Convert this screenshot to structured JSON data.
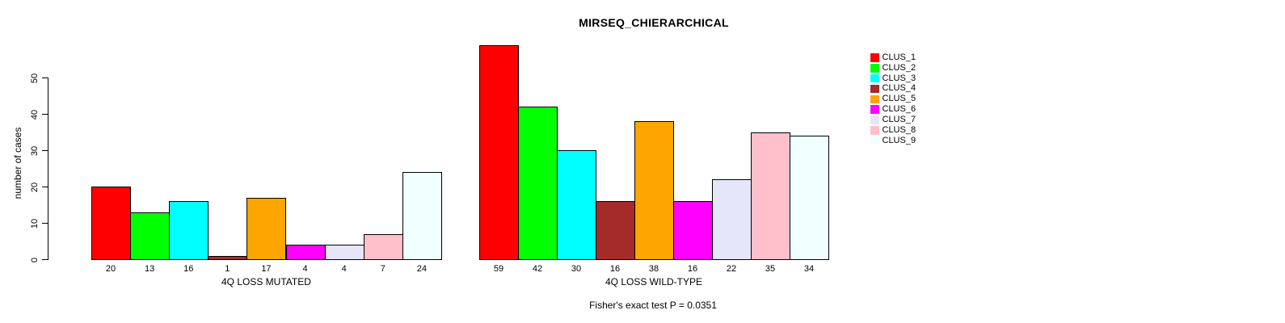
{
  "chart_data": {
    "type": "bar",
    "title": "MIRSEQ_CHIERARCHICAL",
    "ylabel": "number of cases",
    "ylim": [
      0,
      59
    ],
    "yticks": [
      0,
      10,
      20,
      30,
      40,
      50
    ],
    "grid": false,
    "legend_position": "right-top",
    "categories": [
      "CLUS_1",
      "CLUS_2",
      "CLUS_3",
      "CLUS_4",
      "CLUS_5",
      "CLUS_6",
      "CLUS_7",
      "CLUS_8",
      "CLUS_9"
    ],
    "colors": [
      "#FF0000",
      "#00FF00",
      "#00FFFF",
      "#A52A2A",
      "#FFA500",
      "#FF00FF",
      "#E6E6FA",
      "#FFC0CB",
      "#F0FFFF"
    ],
    "series": [
      {
        "name": "4Q LOSS MUTATED",
        "values": [
          20,
          13,
          16,
          1,
          17,
          4,
          4,
          7,
          24
        ]
      },
      {
        "name": "4Q LOSS WILD-TYPE",
        "values": [
          59,
          42,
          30,
          16,
          38,
          16,
          22,
          35,
          34
        ]
      }
    ],
    "bar_value_labels_shown": true,
    "annotation": "Fisher's exact test P = 0.0351"
  }
}
